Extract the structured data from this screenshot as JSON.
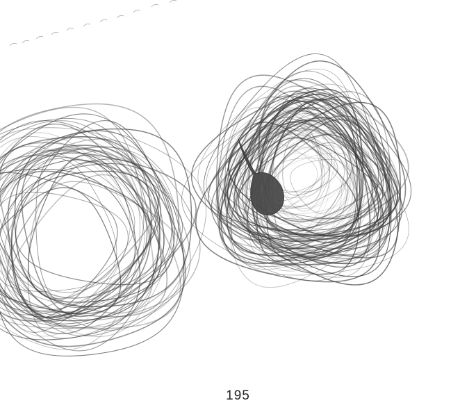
{
  "page": {
    "number": "195"
  },
  "drawing": {
    "subject": "pencil-scribble-loops",
    "stroke_color": "#3a3a3a",
    "fill_color": "#4a4a4a",
    "background_color": "#ffffff"
  }
}
